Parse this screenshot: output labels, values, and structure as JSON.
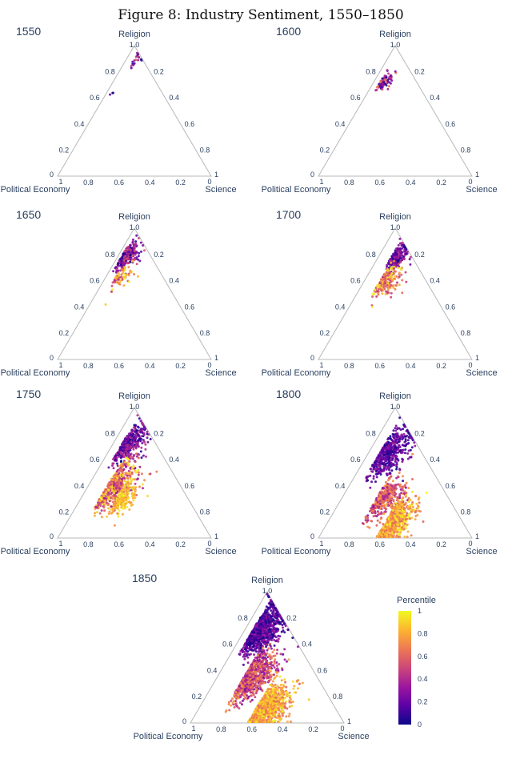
{
  "title": "Figure 8: Industry Sentiment, 1550–1850",
  "chart_data": {
    "type": "ternary-scatter",
    "axes": {
      "top": "Religion",
      "left": "Political Economy",
      "right": "Science"
    },
    "tick_values": [
      "0.2",
      "0.4",
      "0.6",
      "0.8"
    ],
    "corner_values": {
      "top": "1.0",
      "left_zero": "0",
      "left_one": "1",
      "right_zero": "0",
      "right_one": "1"
    },
    "colorscale": {
      "name": "plasma",
      "title": "Percentile",
      "range": [
        0,
        1
      ],
      "ticks": [
        "0",
        "0.2",
        "0.4",
        "0.6",
        "0.8",
        "1"
      ],
      "stops": [
        "#0d0887",
        "#5c01a6",
        "#9c179e",
        "#cc4778",
        "#ed7953",
        "#fdb42f",
        "#f0f921"
      ]
    },
    "panels": [
      {
        "year": "1550",
        "note": "Very few points, tightly near the Religion corner",
        "clusters": [
          {
            "religion": 0.9,
            "science": 0.06,
            "spread": 0.035,
            "n": 22,
            "pct": [
              0.0,
              0.55
            ]
          },
          {
            "religion": 0.63,
            "science": 0.03,
            "spread": 0.012,
            "n": 3,
            "pct": [
              0.0,
              0.2
            ]
          }
        ]
      },
      {
        "year": "1600",
        "note": "Small dense cluster at Religion 0.65–0.80",
        "clusters": [
          {
            "religion": 0.72,
            "science": 0.05,
            "spread": 0.035,
            "n": 90,
            "pct": [
              0.0,
              0.7
            ]
          }
        ]
      },
      {
        "year": "1650",
        "note": "Elongated band along Religion–Political Economy edge, mostly dark",
        "clusters": [
          {
            "religion": 0.78,
            "science": 0.04,
            "spread": 0.05,
            "n": 260,
            "pct": [
              0.0,
              0.6
            ]
          },
          {
            "religion": 0.62,
            "science": 0.08,
            "spread": 0.05,
            "n": 80,
            "pct": [
              0.4,
              1.0
            ]
          }
        ]
      },
      {
        "year": "1700",
        "note": "Wider blob with yellow tail toward center",
        "clusters": [
          {
            "religion": 0.78,
            "science": 0.1,
            "spread": 0.05,
            "n": 220,
            "pct": [
              0.0,
              0.45
            ]
          },
          {
            "religion": 0.6,
            "science": 0.12,
            "spread": 0.06,
            "n": 220,
            "pct": [
              0.4,
              1.0
            ]
          }
        ]
      },
      {
        "year": "1750",
        "note": "Large fan from Religion 0.85 down to 0.25, bright lower region",
        "clusters": [
          {
            "religion": 0.72,
            "science": 0.08,
            "spread": 0.07,
            "n": 380,
            "pct": [
              0.0,
              0.45
            ]
          },
          {
            "religion": 0.4,
            "science": 0.15,
            "spread": 0.09,
            "n": 520,
            "pct": [
              0.3,
              1.0
            ]
          },
          {
            "religion": 0.3,
            "science": 0.25,
            "spread": 0.06,
            "n": 200,
            "pct": [
              0.7,
              1.0
            ]
          }
        ]
      },
      {
        "year": "1800",
        "note": "Dark upper spine, bright horizontal spread toward Science",
        "clusters": [
          {
            "religion": 0.65,
            "science": 0.1,
            "spread": 0.09,
            "n": 520,
            "pct": [
              0.0,
              0.35
            ]
          },
          {
            "religion": 0.3,
            "science": 0.25,
            "spread": 0.08,
            "n": 380,
            "pct": [
              0.3,
              0.8
            ]
          },
          {
            "religion": 0.12,
            "science": 0.4,
            "spread": 0.08,
            "n": 650,
            "pct": [
              0.6,
              1.0
            ]
          }
        ]
      },
      {
        "year": "1850",
        "note": "Densest: dark spine to Religion 0.9, bright tail to Science 0.7",
        "clusters": [
          {
            "religion": 0.7,
            "science": 0.08,
            "spread": 0.09,
            "n": 900,
            "pct": [
              0.0,
              0.35
            ]
          },
          {
            "religion": 0.35,
            "science": 0.2,
            "spread": 0.09,
            "n": 800,
            "pct": [
              0.25,
              0.8
            ]
          },
          {
            "religion": 0.1,
            "science": 0.4,
            "spread": 0.09,
            "n": 1100,
            "pct": [
              0.6,
              1.0
            ]
          }
        ]
      }
    ]
  }
}
